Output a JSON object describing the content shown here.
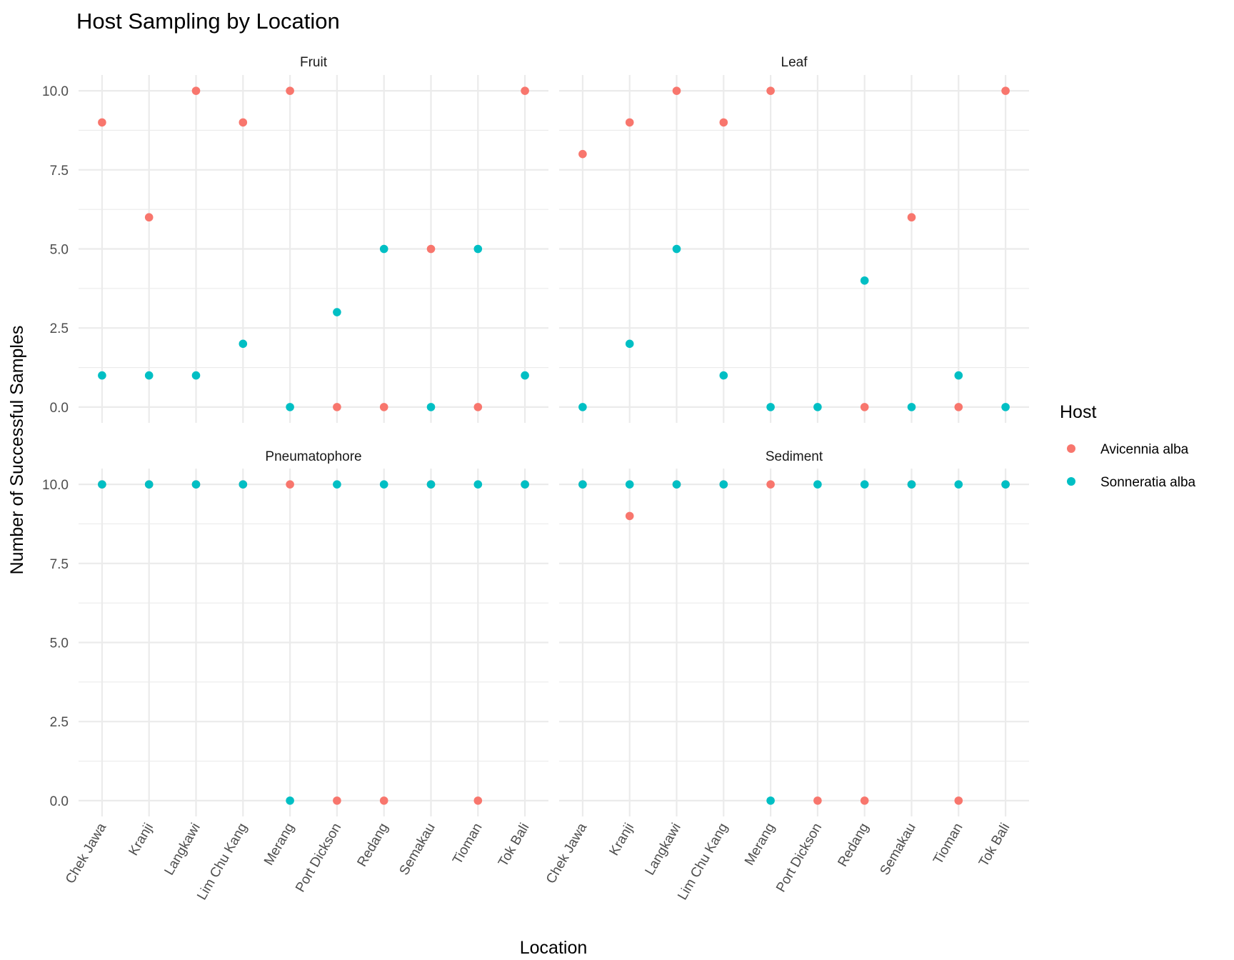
{
  "chart_data": {
    "type": "scatter",
    "title": "Host Sampling by Location",
    "xlabel": "Location",
    "ylabel": "Number of Successful Samples",
    "ylim": [
      -0.5,
      10.5
    ],
    "yticks": [
      "0.0",
      "2.5",
      "5.0",
      "7.5",
      "10.0"
    ],
    "categories": [
      "Chek Jawa",
      "Kranji",
      "Langkawi",
      "Lim Chu Kang",
      "Merang",
      "Port Dickson",
      "Redang",
      "Semakau",
      "Tioman",
      "Tok Bali"
    ],
    "legend": {
      "title": "Host",
      "position": "right"
    },
    "grid": true,
    "colors": {
      "Avicennia alba": "#F8766D",
      "Sonneratia alba": "#00BFC4"
    },
    "facets": [
      {
        "name": "Fruit",
        "series": [
          {
            "name": "Avicennia alba",
            "values": [
              9,
              6,
              10,
              9,
              10,
              0,
              0,
              5,
              0,
              10
            ]
          },
          {
            "name": "Sonneratia alba",
            "values": [
              1,
              1,
              1,
              2,
              0,
              3,
              5,
              0,
              5,
              1
            ]
          }
        ]
      },
      {
        "name": "Leaf",
        "series": [
          {
            "name": "Avicennia alba",
            "values": [
              8,
              9,
              10,
              9,
              10,
              null,
              0,
              6,
              0,
              10
            ]
          },
          {
            "name": "Sonneratia alba",
            "values": [
              0,
              2,
              5,
              1,
              0,
              0,
              4,
              0,
              1,
              0
            ]
          }
        ]
      },
      {
        "name": "Pneumatophore",
        "series": [
          {
            "name": "Avicennia alba",
            "values": [
              10,
              10,
              10,
              10,
              10,
              0,
              0,
              10,
              0,
              10
            ]
          },
          {
            "name": "Sonneratia alba",
            "values": [
              10,
              10,
              10,
              10,
              0,
              10,
              10,
              10,
              10,
              10
            ]
          }
        ]
      },
      {
        "name": "Sediment",
        "series": [
          {
            "name": "Avicennia alba",
            "values": [
              10,
              9,
              10,
              10,
              10,
              0,
              0,
              10,
              0,
              10
            ]
          },
          {
            "name": "Sonneratia alba",
            "values": [
              10,
              10,
              10,
              10,
              0,
              10,
              10,
              10,
              10,
              10
            ]
          }
        ]
      }
    ]
  }
}
